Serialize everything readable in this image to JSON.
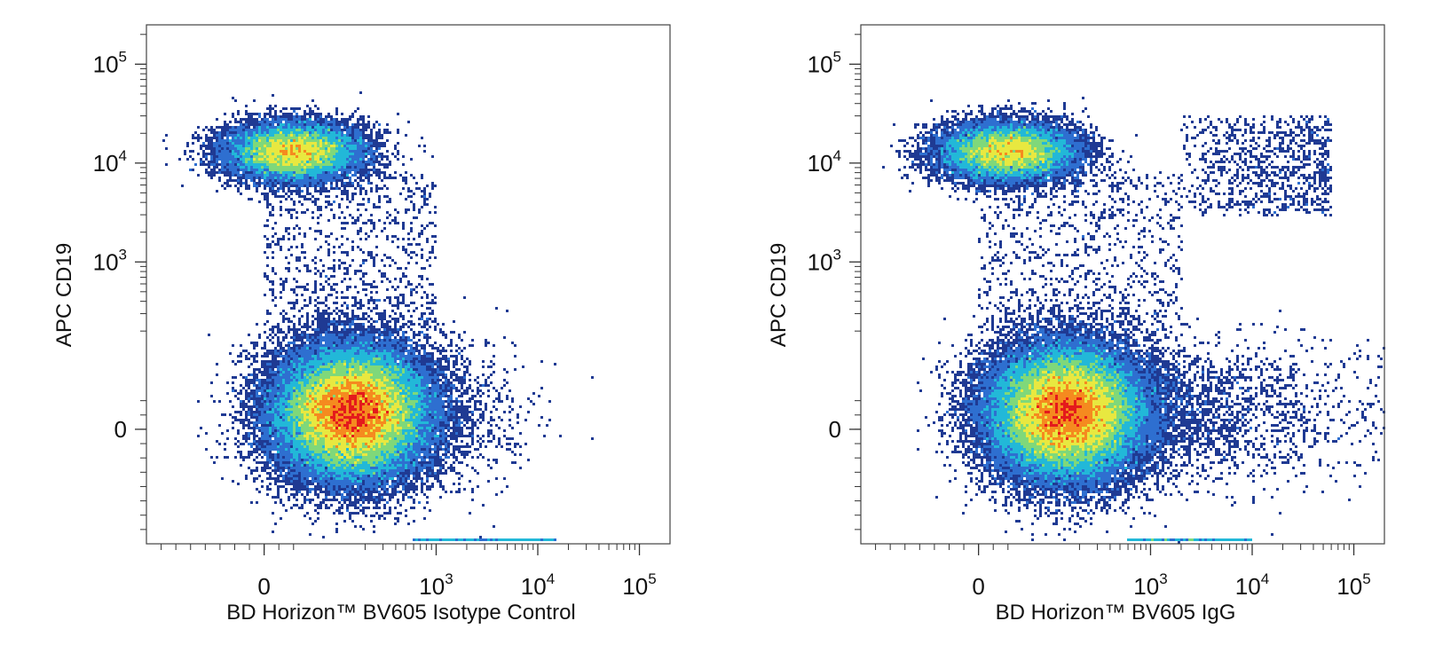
{
  "chart_data": [
    {
      "type": "scatter",
      "subtype": "flow-cytometry-density-plot",
      "title": "",
      "xlabel": "BD Horizon™ BV605 Isotype Control",
      "ylabel": "APC  CD19",
      "x_scale": "biexponential",
      "y_scale": "biexponential",
      "xlim": [
        -400,
        200000
      ],
      "ylim": [
        -400,
        250000
      ],
      "x_ticks": [
        {
          "value": 0,
          "base": "0",
          "exp": ""
        },
        {
          "value": 1000,
          "base": "10",
          "exp": "3"
        },
        {
          "value": 10000,
          "base": "10",
          "exp": "4"
        },
        {
          "value": 100000,
          "base": "10",
          "exp": "5"
        }
      ],
      "y_ticks": [
        {
          "value": 0,
          "base": "0",
          "exp": ""
        },
        {
          "value": 1000,
          "base": "10",
          "exp": "3"
        },
        {
          "value": 10000,
          "base": "10",
          "exp": "4"
        },
        {
          "value": 100000,
          "base": "10",
          "exp": "5"
        }
      ],
      "grid": false,
      "colormap": [
        "#1f3a93",
        "#2e6fd0",
        "#22b8d8",
        "#7fd87a",
        "#e8e840",
        "#f58a1f",
        "#e41a1c"
      ],
      "populations": [
        {
          "name": "",
          "center_x": 150,
          "center_y": 60,
          "density": "high"
        },
        {
          "name": "",
          "center_x": 100,
          "center_y": 13000,
          "density": "medium"
        }
      ],
      "sparse_region": {
        "x_range": [
          0,
          1000
        ],
        "y_range": [
          200,
          8000
        ]
      },
      "positive_region": null
    },
    {
      "type": "scatter",
      "subtype": "flow-cytometry-density-plot",
      "title": "",
      "xlabel": "BD Horizon™ BV605 IgG",
      "ylabel": "APC  CD19",
      "x_scale": "biexponential",
      "y_scale": "biexponential",
      "xlim": [
        -400,
        200000
      ],
      "ylim": [
        -400,
        250000
      ],
      "x_ticks": [
        {
          "value": 0,
          "base": "0",
          "exp": ""
        },
        {
          "value": 1000,
          "base": "10",
          "exp": "3"
        },
        {
          "value": 10000,
          "base": "10",
          "exp": "4"
        },
        {
          "value": 100000,
          "base": "10",
          "exp": "5"
        }
      ],
      "y_ticks": [
        {
          "value": 0,
          "base": "0",
          "exp": ""
        },
        {
          "value": 1000,
          "base": "10",
          "exp": "3"
        },
        {
          "value": 10000,
          "base": "10",
          "exp": "4"
        },
        {
          "value": 100000,
          "base": "10",
          "exp": "5"
        }
      ],
      "grid": false,
      "colormap": [
        "#1f3a93",
        "#2e6fd0",
        "#22b8d8",
        "#7fd87a",
        "#e8e840",
        "#f58a1f",
        "#e41a1c"
      ],
      "populations": [
        {
          "name": "",
          "center_x": 150,
          "center_y": 60,
          "density": "high"
        },
        {
          "name": "",
          "center_x": 100,
          "center_y": 13000,
          "density": "medium"
        }
      ],
      "sparse_region": {
        "x_range": [
          0,
          2000
        ],
        "y_range": [
          200,
          8000
        ]
      },
      "positive_region": {
        "x_range": [
          2000,
          60000
        ],
        "y_range": [
          3000,
          30000
        ]
      }
    }
  ]
}
